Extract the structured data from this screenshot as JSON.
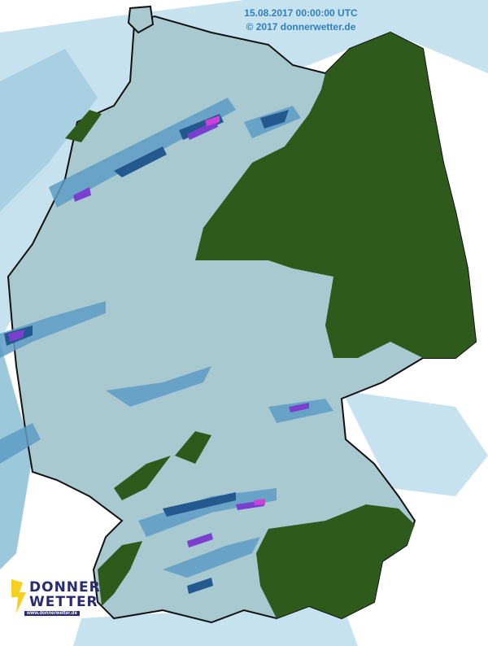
{
  "map": {
    "timestamp": "15.08.2017 00:00:00 UTC",
    "copyright": "© 2017 donnerwetter.de",
    "logo": {
      "line1": "DONNER",
      "line2": "WETTER",
      "url": "www.donnerwetter.de"
    },
    "colors": {
      "background": "#ffffff",
      "outside_rain_light": "#c6e2ee",
      "land": "#a9c9d1",
      "rain_light": "#8fbfd6",
      "rain_medium": "#4b8cbc",
      "rain_heavy": "#24598f",
      "rain_very_heavy": "#7b3fd0",
      "rain_extreme": "#d040d8",
      "no_data_area": "#2e5a1c",
      "text": "#2f7fc0"
    }
  }
}
